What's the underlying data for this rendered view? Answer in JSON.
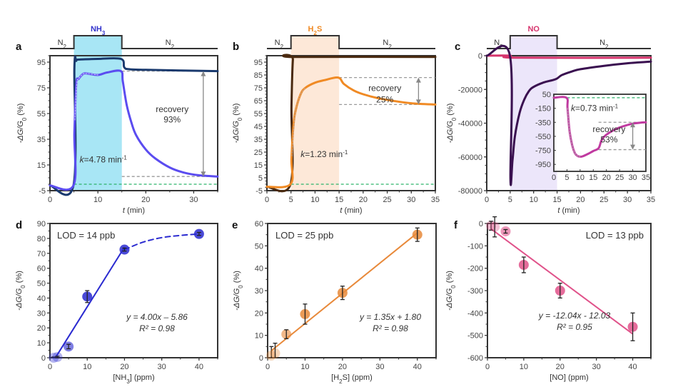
{
  "chart_data": [
    {
      "id": "a",
      "type": "line",
      "panel_label": "a",
      "xlabel": "t (min)",
      "ylabel": "-ΔG/G0 (%)",
      "xlim": [
        0,
        35
      ],
      "ylim": [
        -5,
        100
      ],
      "xticks": [
        0,
        10,
        20,
        30
      ],
      "yticks": [
        -5,
        15,
        35,
        55,
        75,
        95
      ],
      "gas_sequence": [
        {
          "label": "N2",
          "from": 0,
          "to": 5
        },
        {
          "label": "NH3",
          "from": 5,
          "to": 15
        },
        {
          "label": "N2",
          "from": 15,
          "to": 35
        }
      ],
      "exposure_window": [
        5,
        15
      ],
      "shade_color": "#a8e6f5",
      "gas_color": "#3333cc",
      "series": [
        {
          "name": "upper",
          "color": "#1a3a6e",
          "x": [
            0,
            4.9,
            5.1,
            5.5,
            6,
            10,
            14.8,
            15.5,
            16.5,
            20,
            35
          ],
          "y": [
            -1,
            -1,
            90,
            96,
            97,
            97.5,
            97.5,
            91,
            89.5,
            89,
            88
          ]
        },
        {
          "name": "response",
          "color": "#5b4cf0",
          "x": [
            0,
            4.9,
            5.1,
            5.5,
            6,
            7,
            8,
            10,
            12,
            14.8,
            15.2,
            16,
            17,
            18,
            20,
            22,
            25,
            28,
            31,
            35
          ],
          "y": [
            -1,
            -1,
            40,
            78,
            82,
            86,
            86,
            85,
            87,
            88,
            80,
            62,
            48,
            38,
            27,
            20,
            13,
            9,
            7,
            6
          ]
        }
      ],
      "baseline": 0,
      "recovery_levels": [
        88,
        6
      ],
      "annotations": {
        "k": "k=4.78 min⁻¹",
        "recovery": "recovery",
        "recovery_value": "93%"
      }
    },
    {
      "id": "b",
      "type": "line",
      "panel_label": "b",
      "xlabel": "t (min)",
      "ylabel": "-ΔG/G0 (%)",
      "xlim": [
        0,
        35
      ],
      "ylim": [
        -5,
        100
      ],
      "xticks": [
        0,
        5,
        10,
        15,
        20,
        25,
        30,
        35
      ],
      "yticks": [
        -5,
        5,
        15,
        25,
        35,
        45,
        55,
        65,
        75,
        85,
        95
      ],
      "gas_sequence": [
        {
          "label": "N2",
          "from": 0,
          "to": 5
        },
        {
          "label": "H2S",
          "from": 5,
          "to": 15
        },
        {
          "label": "N2",
          "from": 15,
          "to": 35
        }
      ],
      "exposure_window": [
        5,
        15
      ],
      "shade_color": "#fde8d8",
      "gas_color": "#f08a24",
      "series": [
        {
          "name": "upper",
          "color": "#4a2a10",
          "x": [
            0,
            4.9,
            5.1,
            5.4,
            5.8,
            35
          ],
          "y": [
            -2,
            0,
            60,
            97,
            99,
            99
          ]
        },
        {
          "name": "response",
          "color": "#f08a24",
          "x": [
            0,
            4.9,
            5.1,
            5.5,
            6,
            7,
            8,
            10,
            12,
            14.8,
            16,
            18,
            20,
            23,
            26,
            30,
            35
          ],
          "y": [
            -2,
            0,
            20,
            45,
            58,
            70,
            75,
            79,
            81,
            83,
            78,
            73,
            70,
            67,
            65,
            63,
            62
          ]
        }
      ],
      "baseline": 0,
      "recovery_levels": [
        83,
        62
      ],
      "annotations": {
        "k": "k=1.23 min⁻¹",
        "recovery": "recovery",
        "recovery_value": "25%"
      }
    },
    {
      "id": "c",
      "type": "line",
      "panel_label": "c",
      "xlabel": "t (min)",
      "ylabel": "-ΔG/G0 (%)",
      "xlim": [
        0,
        35
      ],
      "ylim": [
        -80000,
        0
      ],
      "xticks": [
        0,
        5,
        10,
        15,
        20,
        25,
        30,
        35
      ],
      "yticks": [
        -80000,
        -60000,
        -40000,
        -20000,
        0
      ],
      "gas_sequence": [
        {
          "label": "N2",
          "from": 0,
          "to": 5
        },
        {
          "label": "NO",
          "from": 5,
          "to": 15
        },
        {
          "label": "N2",
          "from": 15,
          "to": 35
        }
      ],
      "exposure_window": [
        5,
        15
      ],
      "shade_color": "#ece6fa",
      "gas_color": "#d6336c",
      "series": [
        {
          "name": "main",
          "color": "#3a1050",
          "x": [
            0,
            4.95,
            5.05,
            5.5,
            6,
            7,
            8,
            9,
            10,
            12,
            14,
            15,
            16,
            18,
            20,
            25,
            30,
            35
          ],
          "y": [
            0,
            0,
            -73000,
            -62000,
            -48000,
            -34000,
            -26000,
            -21000,
            -18500,
            -16000,
            -14500,
            -13500,
            -11500,
            -9500,
            -8000,
            -6000,
            -4500,
            -3500
          ]
        },
        {
          "name": "reference",
          "color": "#d6336c",
          "x": [
            0,
            5,
            6,
            35
          ],
          "y": [
            0,
            0,
            -1200,
            -1200
          ]
        }
      ],
      "inset": {
        "xlim": [
          0,
          35
        ],
        "ylim": [
          -1050,
          50
        ],
        "xticks": [
          0,
          5,
          10,
          15,
          20,
          25,
          30,
          35
        ],
        "yticks": [
          -950,
          -750,
          -550,
          -350,
          -150,
          50
        ],
        "series": [
          {
            "name": "response",
            "color": "#c03aa0",
            "x": [
              0,
              4.8,
              5.2,
              6,
              7,
              8,
              9,
              10,
              11,
              13,
              15,
              17,
              18,
              19,
              21,
              24,
              27,
              30,
              33,
              35
            ],
            "y": [
              0,
              0,
              -150,
              -480,
              -680,
              -790,
              -830,
              -840,
              -835,
              -800,
              -760,
              -720,
              -620,
              -560,
              -500,
              -440,
              -400,
              -370,
              -355,
              -350
            ]
          }
        ],
        "baseline": 0,
        "recovery_levels": [
          -350,
          -740
        ],
        "annotations": {
          "k": "k=0.73 min⁻¹",
          "recovery": "recovery",
          "recovery_value": "53%"
        }
      }
    },
    {
      "id": "d",
      "type": "scatter",
      "panel_label": "d",
      "xlabel": "[NH3] (ppm)",
      "ylabel": "-ΔG/G0 (%)",
      "xlim": [
        0,
        45
      ],
      "ylim": [
        0,
        90
      ],
      "xticks": [
        0,
        10,
        20,
        30,
        40
      ],
      "yticks": [
        0,
        10,
        20,
        30,
        40,
        50,
        60,
        70,
        80,
        90
      ],
      "color": "#2a2ad0",
      "points": [
        {
          "x": 1,
          "y": 0,
          "err": 0.5
        },
        {
          "x": 2,
          "y": 0.5,
          "err": 0.5
        },
        {
          "x": 5,
          "y": 7.5,
          "err": 1.5
        },
        {
          "x": 10,
          "y": 41,
          "err": 4
        },
        {
          "x": 20,
          "y": 72.5,
          "err": 1
        },
        {
          "x": 40,
          "y": 83,
          "err": 1
        }
      ],
      "fit": {
        "slope": 4.0,
        "intercept": -5.86,
        "x_range": [
          1.5,
          20
        ]
      },
      "saturation_curve": {
        "x": [
          20,
          25,
          30,
          35,
          40
        ],
        "y": [
          72.5,
          77.5,
          80.5,
          82,
          83
        ]
      },
      "lod": "LOD = 14 ppb",
      "equation": "y = 4.00x – 5.86",
      "r2": "R² = 0.98"
    },
    {
      "id": "e",
      "type": "scatter",
      "panel_label": "e",
      "xlabel": "[H2S] (ppm)",
      "ylabel": "-ΔG/G0 (%)",
      "xlim": [
        0,
        45
      ],
      "ylim": [
        0,
        60
      ],
      "xticks": [
        0,
        10,
        20,
        30,
        40
      ],
      "yticks": [
        0,
        10,
        20,
        30,
        40,
        50,
        60
      ],
      "color": "#e8893a",
      "points": [
        {
          "x": 1,
          "y": 1,
          "err": 4
        },
        {
          "x": 2,
          "y": 2,
          "err": 4.5
        },
        {
          "x": 5,
          "y": 10.5,
          "err": 2
        },
        {
          "x": 10,
          "y": 19.5,
          "err": 4.5
        },
        {
          "x": 20,
          "y": 29,
          "err": 3
        },
        {
          "x": 40,
          "y": 55,
          "err": 3
        }
      ],
      "fit": {
        "slope": 1.35,
        "intercept": 1.8,
        "x_range": [
          1,
          40
        ]
      },
      "lod": "LOD = 25 ppb",
      "equation": "y = 1.35x + 1.80",
      "r2": "R² = 0.98"
    },
    {
      "id": "f",
      "type": "scatter",
      "panel_label": "f",
      "xlabel": "[NO] (ppm)",
      "ylabel": "-ΔG/G0 (%)",
      "xlim": [
        0,
        45
      ],
      "ylim": [
        -600,
        0
      ],
      "xticks": [
        0,
        10,
        20,
        30,
        40
      ],
      "yticks": [
        -600,
        -500,
        -400,
        -300,
        -200,
        -100,
        0
      ],
      "color": "#e0528a",
      "points": [
        {
          "x": 1,
          "y": -10,
          "err": 20
        },
        {
          "x": 2,
          "y": -15,
          "err": 45
        },
        {
          "x": 5,
          "y": -35,
          "err": 8
        },
        {
          "x": 10,
          "y": -185,
          "err": 35
        },
        {
          "x": 20,
          "y": -300,
          "err": 33
        },
        {
          "x": 40,
          "y": -462,
          "err": 62
        }
      ],
      "fit": {
        "slope": -12.04,
        "intercept": -12.03,
        "x_range": [
          1,
          40
        ]
      },
      "lod": "LOD = 13 ppb",
      "equation": "y = -12.04x - 12.03",
      "r2": "R² = 0.95"
    }
  ]
}
